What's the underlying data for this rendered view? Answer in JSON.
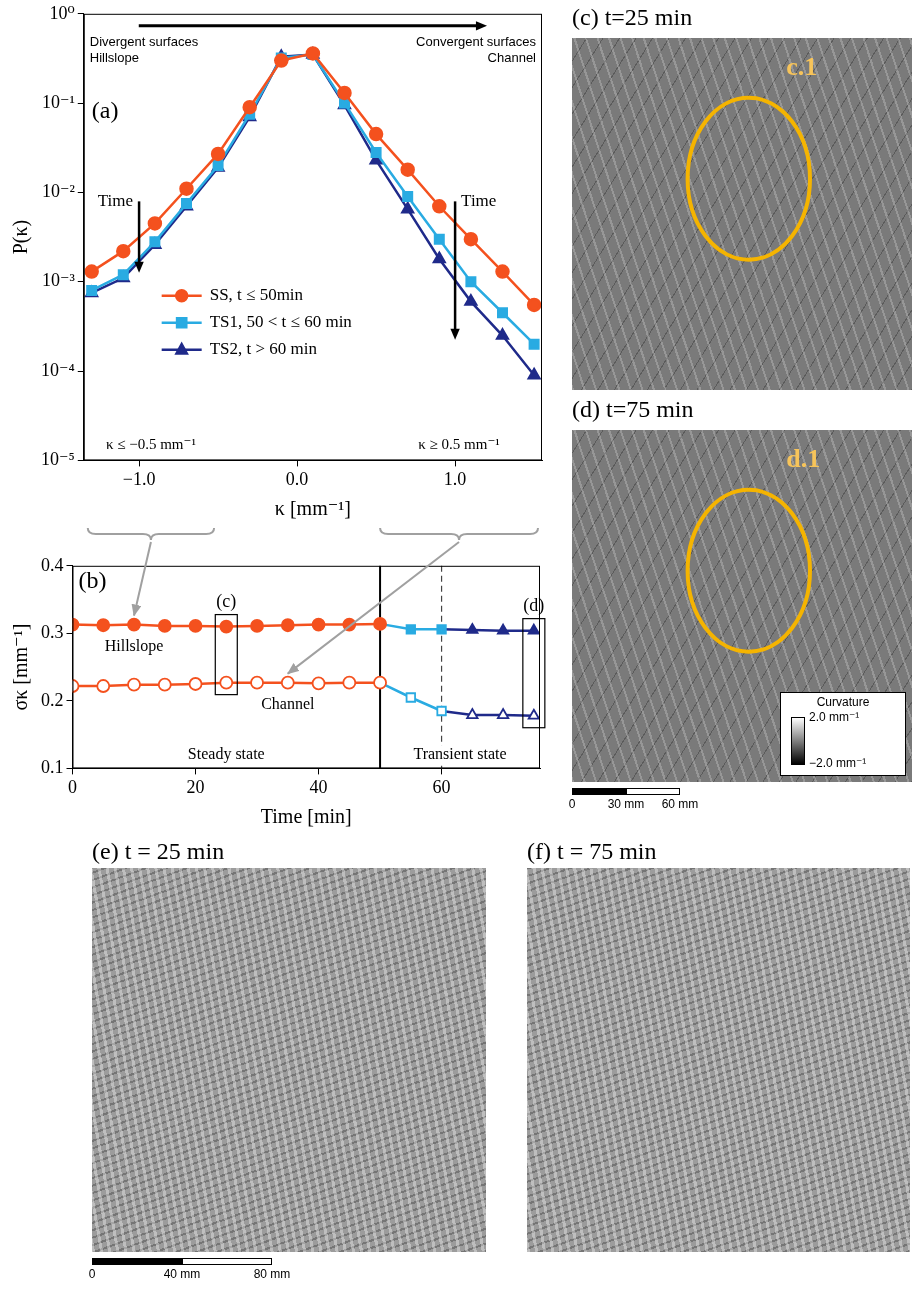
{
  "chart_data": [
    {
      "panel": "(a)",
      "type": "line",
      "x_label": "κ [mm⁻¹]",
      "y_label": "P(κ)",
      "log": "y",
      "grid": false,
      "legend": "center",
      "xlim": [
        -1.35,
        1.55
      ],
      "xticks": [
        {
          "value": -1,
          "label": "−1.0"
        },
        {
          "value": 0,
          "label": "0.0"
        },
        {
          "value": 1,
          "label": "1.0"
        }
      ],
      "ylim": [
        1e-05,
        1
      ],
      "yticks": [
        {
          "value": 1e-05,
          "label": "10⁻⁵"
        },
        {
          "value": 0.0001,
          "label": "10⁻⁴"
        },
        {
          "value": 0.001,
          "label": "10⁻³"
        },
        {
          "value": 0.01,
          "label": "10⁻²"
        },
        {
          "value": 0.1,
          "label": "10⁻¹"
        },
        {
          "value": 1,
          "label": "10⁰"
        }
      ],
      "x": [
        -1.3,
        -1.1,
        -0.9,
        -0.7,
        -0.5,
        -0.3,
        -0.1,
        0.1,
        0.3,
        0.5,
        0.7,
        0.9,
        1.1,
        1.3,
        1.5
      ],
      "series": [
        {
          "name": "SS, t ≤ 50min",
          "color": "#f4511e",
          "marker": "circle",
          "values": [
            0.0013,
            0.0022,
            0.0045,
            0.011,
            0.027,
            0.09,
            0.3,
            0.36,
            0.13,
            0.045,
            0.018,
            0.007,
            0.003,
            0.0013,
            0.00055
          ]
        },
        {
          "name": "TS1, 50 < t ≤ 60 min",
          "color": "#29abe2",
          "marker": "square",
          "values": [
            0.0008,
            0.0012,
            0.0028,
            0.0075,
            0.02,
            0.075,
            0.32,
            0.35,
            0.1,
            0.028,
            0.009,
            0.003,
            0.001,
            0.00045,
            0.0002
          ]
        },
        {
          "name": "TS2, t > 60 min",
          "color": "#1f2a8a",
          "marker": "triangle",
          "values": [
            0.00075,
            0.0011,
            0.0026,
            0.007,
            0.019,
            0.07,
            0.33,
            0.35,
            0.095,
            0.023,
            0.0065,
            0.0018,
            0.0006,
            0.00025,
            9e-05
          ]
        }
      ],
      "annotations": {
        "top_arrow": {
          "left": [
            "Divergent surfaces",
            "Hillslope"
          ],
          "right": [
            "Convergent surfaces",
            "Channel"
          ]
        },
        "time_arrows": [
          {
            "text": "Time",
            "x": -1
          },
          {
            "text": "Time",
            "x": 1
          }
        ],
        "tails": [
          {
            "text": "κ ≤ −0.5 mm⁻¹",
            "threshold": -0.5,
            "target": "Hillslope"
          },
          {
            "text": "κ ≥ 0.5 mm⁻¹",
            "threshold": 0.5,
            "target": "Channel"
          }
        ]
      }
    },
    {
      "panel": "(b)",
      "type": "line",
      "x_label": "Time [min]",
      "y_label": "σκ [mm⁻¹]",
      "grid": false,
      "xlim": [
        0,
        76
      ],
      "xticks": [
        0,
        20,
        40,
        60
      ],
      "ylim": [
        0.1,
        0.4
      ],
      "yticks": [
        0.1,
        0.2,
        0.3,
        0.4
      ],
      "series": [
        {
          "name": "Hillslope",
          "phase": "SS, t ≤ 50min",
          "marker": "filled",
          "x": [
            0,
            5,
            10,
            15,
            20,
            25,
            30,
            35,
            40,
            45,
            50
          ],
          "values": [
            0.313,
            0.312,
            0.313,
            0.311,
            0.311,
            0.31,
            0.311,
            0.312,
            0.313,
            0.313,
            0.314
          ]
        },
        {
          "name": "Hillslope",
          "phase": "TS1, 50 < t ≤ 60 min",
          "marker": "filled",
          "x": [
            55,
            60
          ],
          "values": [
            0.306,
            0.306
          ]
        },
        {
          "name": "Hillslope",
          "phase": "TS2, t > 60 min",
          "marker": "filled",
          "x": [
            65,
            70,
            75
          ],
          "values": [
            0.305,
            0.304,
            0.304
          ]
        },
        {
          "name": "Channel",
          "phase": "SS, t ≤ 50min",
          "marker": "hollow",
          "x": [
            0,
            5,
            10,
            15,
            20,
            25,
            30,
            35,
            40,
            45,
            50
          ],
          "values": [
            0.222,
            0.222,
            0.224,
            0.224,
            0.225,
            0.227,
            0.227,
            0.227,
            0.226,
            0.227,
            0.227
          ]
        },
        {
          "name": "Channel",
          "phase": "TS1, 50 < t ≤ 60 min",
          "marker": "hollow",
          "x": [
            55,
            60
          ],
          "values": [
            0.205,
            0.185
          ]
        },
        {
          "name": "Channel",
          "phase": "TS2, t > 60 min",
          "marker": "hollow",
          "x": [
            65,
            70,
            75
          ],
          "values": [
            0.179,
            0.179,
            0.178
          ]
        }
      ],
      "vlines": [
        {
          "x": 50,
          "line_style": "solid"
        },
        {
          "x": 60,
          "line_style": "dashed"
        }
      ],
      "region_labels": [
        "Steady state",
        "Transient state"
      ],
      "highlights": [
        {
          "label": "(c)",
          "x": 25
        },
        {
          "label": "(d)",
          "x": 75
        }
      ]
    }
  ],
  "images": [
    {
      "title": "(c) t=25 min",
      "kind": "curvature",
      "region_label": "c.1"
    },
    {
      "title": "(d) t=75 min",
      "kind": "curvature",
      "region_label": "d.1",
      "colorbar": {
        "title": "Curvature",
        "range": [
          -2,
          2
        ],
        "ticks": [
          {
            "value": 2,
            "label": "2.0 mm⁻¹"
          },
          {
            "value": -2,
            "label": "−2.0 mm⁻¹"
          }
        ]
      },
      "scale_bar": {
        "ticks": [
          0,
          {
            "value": 30,
            "label": "30 mm"
          },
          {
            "value": 60,
            "label": "60 mm"
          }
        ]
      }
    },
    {
      "title": "(e) t = 25 min",
      "kind": "hillshade",
      "scale_bar": {
        "ticks": [
          0,
          {
            "value": 40,
            "label": "40 mm"
          },
          {
            "value": 80,
            "label": "80 mm"
          }
        ]
      }
    },
    {
      "title": "(f) t = 75 min",
      "kind": "hillshade"
    }
  ]
}
